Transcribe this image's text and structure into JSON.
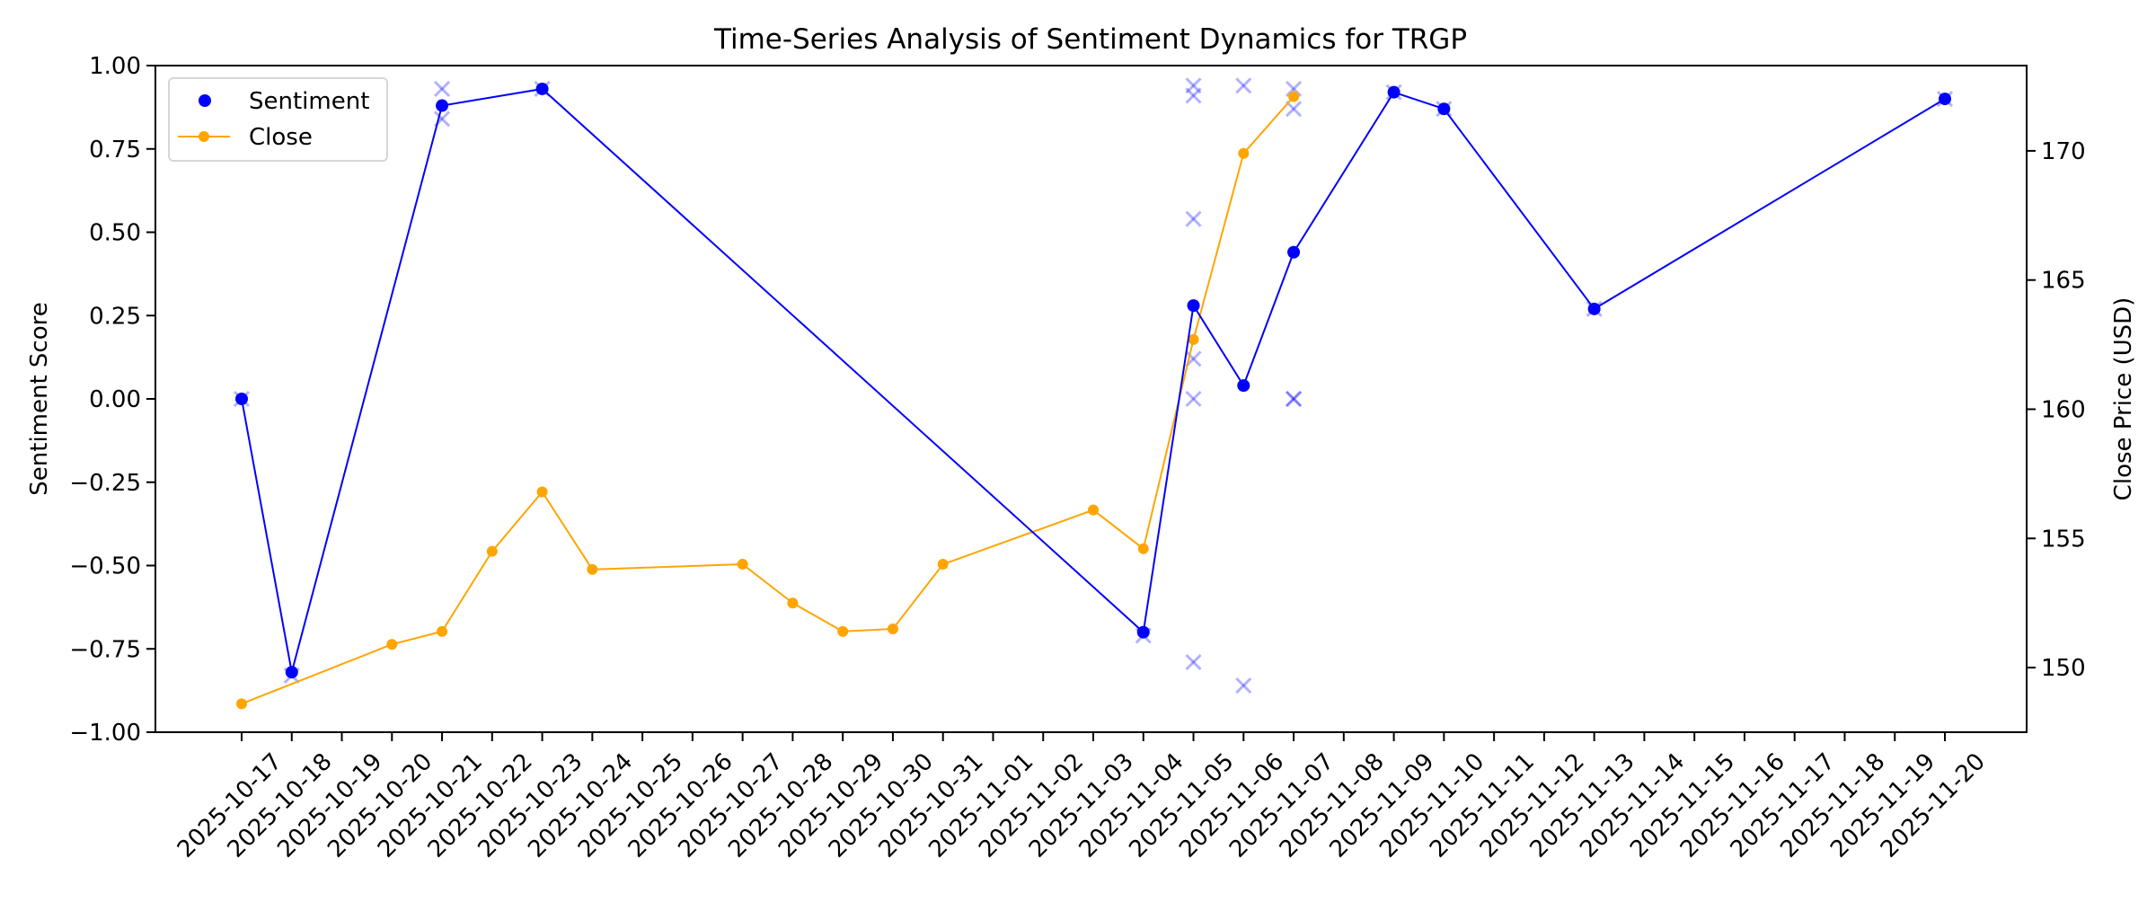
{
  "chart_data": {
    "type": "line",
    "title": "Time-Series Analysis of Sentiment Dynamics for TRGP",
    "ylabel": "Sentiment Score",
    "y2label": "Close Price (USD)",
    "xlabel": "",
    "ylim": [
      -1.0,
      1.0
    ],
    "y2lim": [
      147.5,
      173.3
    ],
    "yticks": [
      "1.00",
      "0.75",
      "0.50",
      "0.25",
      "0.00",
      "−0.25",
      "−0.50",
      "−0.75",
      "−1.00"
    ],
    "ytick_values": [
      1.0,
      0.75,
      0.5,
      0.25,
      0.0,
      -0.25,
      -0.5,
      -0.75,
      -1.0
    ],
    "y2ticks": [
      "150",
      "155",
      "160",
      "165",
      "170"
    ],
    "y2tick_values": [
      150,
      155,
      160,
      165,
      170
    ],
    "x_tick_labels": [
      "2025-10-17",
      "2025-10-18",
      "2025-10-19",
      "2025-10-20",
      "2025-10-21",
      "2025-10-22",
      "2025-10-23",
      "2025-10-24",
      "2025-10-25",
      "2025-10-26",
      "2025-10-27",
      "2025-10-28",
      "2025-10-29",
      "2025-10-30",
      "2025-10-31",
      "2025-11-01",
      "2025-11-02",
      "2025-11-03",
      "2025-11-04",
      "2025-11-05",
      "2025-11-06",
      "2025-11-07",
      "2025-11-08",
      "2025-11-09",
      "2025-11-10",
      "2025-11-11",
      "2025-11-12",
      "2025-11-13",
      "2025-11-14",
      "2025-11-15",
      "2025-11-16",
      "2025-11-17",
      "2025-11-18",
      "2025-11-19",
      "2025-11-20"
    ],
    "grid": false,
    "legend": {
      "placement": "top-left",
      "entries": [
        "Sentiment",
        "Close"
      ]
    },
    "colors": {
      "sentiment": "#0000ff",
      "close": "#ffa500",
      "individual": "#0000ff"
    },
    "series": [
      {
        "name": "Sentiment",
        "axis": "left",
        "marker": "dot-line",
        "x": [
          "2025-10-17",
          "2025-10-18",
          "2025-10-21",
          "2025-10-23",
          "2025-11-04",
          "2025-11-05",
          "2025-11-06",
          "2025-11-07",
          "2025-11-09",
          "2025-11-10",
          "2025-11-13",
          "2025-11-20"
        ],
        "values": [
          0.0,
          -0.82,
          0.88,
          0.93,
          -0.7,
          0.28,
          0.04,
          0.44,
          0.92,
          0.87,
          0.27,
          0.9
        ]
      },
      {
        "name": "Close",
        "axis": "right",
        "marker": "dot-line",
        "x": [
          "2025-10-17",
          "2025-10-20",
          "2025-10-21",
          "2025-10-22",
          "2025-10-23",
          "2025-10-24",
          "2025-10-27",
          "2025-10-28",
          "2025-10-29",
          "2025-10-30",
          "2025-10-31",
          "2025-11-03",
          "2025-11-04",
          "2025-11-05",
          "2025-11-06",
          "2025-11-07"
        ],
        "values": [
          148.6,
          150.9,
          151.4,
          154.5,
          156.8,
          153.8,
          154.0,
          152.5,
          151.4,
          151.5,
          154.0,
          156.1,
          154.6,
          162.7,
          169.9,
          172.1
        ]
      },
      {
        "axis": "left",
        "marker": "x",
        "x": [
          "2025-10-17",
          "2025-10-18",
          "2025-10-21",
          "2025-10-21",
          "2025-10-23",
          "2025-11-04",
          "2025-11-05",
          "2025-11-05",
          "2025-11-05",
          "2025-11-05",
          "2025-11-05",
          "2025-11-05",
          "2025-11-06",
          "2025-11-06",
          "2025-11-07",
          "2025-11-07",
          "2025-11-07",
          "2025-11-07",
          "2025-11-09",
          "2025-11-10",
          "2025-11-13",
          "2025-11-20"
        ],
        "values": [
          0.0,
          -0.83,
          0.93,
          0.84,
          0.93,
          -0.71,
          0.94,
          0.91,
          0.54,
          0.12,
          0.0,
          -0.79,
          0.94,
          -0.86,
          0.93,
          0.87,
          0.0,
          0.0,
          0.92,
          0.87,
          0.27,
          0.9
        ]
      }
    ]
  }
}
